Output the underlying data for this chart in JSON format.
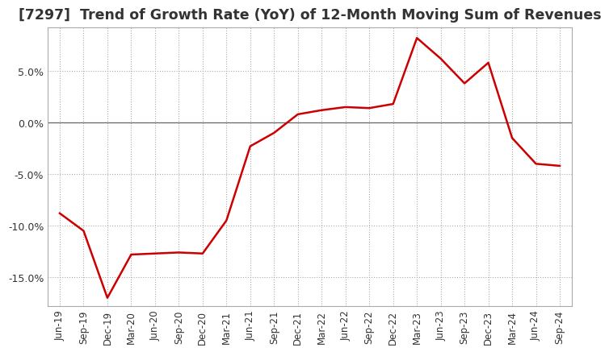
{
  "title": "[7297]  Trend of Growth Rate (YoY) of 12-Month Moving Sum of Revenues",
  "title_fontsize": 12.5,
  "line_color": "#cc0000",
  "background_color": "#ffffff",
  "grid_color": "#aaaaaa",
  "zero_line_color": "#666666",
  "ylim": [
    -0.178,
    0.092
  ],
  "yticks": [
    0.05,
    0.0,
    -0.05,
    -0.1,
    -0.15
  ],
  "xlabels": [
    "Jun-19",
    "Sep-19",
    "Dec-19",
    "Mar-20",
    "Jun-20",
    "Sep-20",
    "Dec-20",
    "Mar-21",
    "Jun-21",
    "Sep-21",
    "Dec-21",
    "Mar-22",
    "Jun-22",
    "Sep-22",
    "Dec-22",
    "Mar-23",
    "Jun-23",
    "Sep-23",
    "Dec-23",
    "Mar-24",
    "Jun-24",
    "Sep-24"
  ],
  "values": [
    -0.088,
    -0.105,
    -0.17,
    -0.128,
    -0.127,
    -0.126,
    -0.127,
    -0.095,
    -0.023,
    -0.01,
    0.008,
    0.012,
    0.015,
    0.014,
    0.018,
    0.082,
    0.062,
    0.038,
    0.058,
    -0.015,
    -0.04,
    -0.042
  ]
}
